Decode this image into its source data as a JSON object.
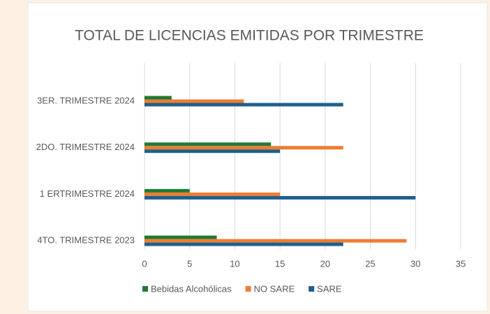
{
  "chart_data": {
    "type": "hbar",
    "title": "TOTAL DE LICENCIAS EMITIDAS POR TRIMESTRE",
    "categories": [
      "3ER. TRIMESTRE 2024",
      "2DO. TRIMESTRE 2024",
      "1 ERTRIMESTRE 2024",
      "4TO. TRIMESTRE 2023"
    ],
    "series": [
      {
        "name": "Bebidas Alcohólicas",
        "color": "#1f7a35",
        "values": [
          3,
          14,
          5,
          8
        ]
      },
      {
        "name": "NO SARE",
        "color": "#ed7d31",
        "values": [
          11,
          22,
          15,
          29
        ]
      },
      {
        "name": "SARE",
        "color": "#1f5f8b",
        "values": [
          22,
          15,
          30,
          22
        ]
      }
    ],
    "xlim": [
      0,
      35
    ],
    "xticks": [
      0,
      5,
      10,
      15,
      20,
      25,
      30,
      35
    ],
    "grid": true,
    "legend": "bottom"
  }
}
